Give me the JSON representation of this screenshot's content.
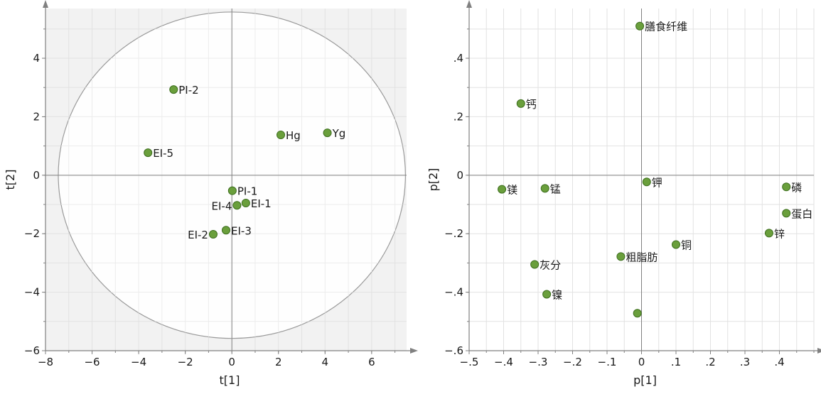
{
  "colors": {
    "point_fill": "#6a9f3c",
    "point_stroke": "#3d6e1e",
    "grid": "#e2e2e2",
    "axis": "#808080",
    "outside_ellipse": "#f2f2f2",
    "ellipse_line": "#9a9a9a"
  },
  "chart_data": [
    {
      "type": "scatter",
      "title": "",
      "xlabel": "t[1]",
      "ylabel": "t[2]",
      "xlim": [
        -8,
        7.5
      ],
      "ylim": [
        -6,
        5.7
      ],
      "xticks": [
        -8,
        -6,
        -4,
        -2,
        0,
        2,
        4,
        6
      ],
      "yticks": [
        -6,
        -4,
        -2,
        0,
        2,
        4
      ],
      "grid": true,
      "confidence_ellipse": {
        "rx": 7.45,
        "ry": 5.58
      },
      "points": [
        {
          "label": "PI-2",
          "x": -2.5,
          "y": 2.93
        },
        {
          "label": "EI-5",
          "x": -3.6,
          "y": 0.77
        },
        {
          "label": "Hg",
          "x": 2.1,
          "y": 1.38
        },
        {
          "label": "Yg",
          "x": 4.1,
          "y": 1.45
        },
        {
          "label": "PI-1",
          "x": 0.02,
          "y": -0.53
        },
        {
          "label": "EI-1",
          "x": 0.6,
          "y": -0.95
        },
        {
          "label": "EI-4",
          "x": 0.22,
          "y": -1.03
        },
        {
          "label": "EI-3",
          "x": -0.25,
          "y": -1.88
        },
        {
          "label": "EI-2",
          "x": -0.8,
          "y": -2.02
        }
      ]
    },
    {
      "type": "scatter",
      "title": "",
      "xlabel": "p[1]",
      "ylabel": "p[2]",
      "xlim": [
        -0.5,
        0.5
      ],
      "ylim": [
        -0.6,
        0.57
      ],
      "xticks": [
        -0.5,
        -0.4,
        -0.3,
        -0.2,
        -0.1,
        0,
        0.1,
        0.2,
        0.3,
        0.4
      ],
      "yticks": [
        -0.6,
        -0.4,
        -0.2,
        0,
        0.2,
        0.4
      ],
      "grid": true,
      "points": [
        {
          "label": "膳食纤维",
          "x": -0.005,
          "y": 0.51
        },
        {
          "label": "钙",
          "x": -0.35,
          "y": 0.245
        },
        {
          "label": "镁",
          "x": -0.405,
          "y": -0.048
        },
        {
          "label": "锰",
          "x": -0.28,
          "y": -0.045
        },
        {
          "label": "钾",
          "x": 0.015,
          "y": -0.023
        },
        {
          "label": "磷",
          "x": 0.42,
          "y": -0.04
        },
        {
          "label": "蛋白",
          "x": 0.42,
          "y": -0.13
        },
        {
          "label": "锌",
          "x": 0.37,
          "y": -0.198
        },
        {
          "label": "铜",
          "x": 0.1,
          "y": -0.237
        },
        {
          "label": "粗脂肪",
          "x": -0.06,
          "y": -0.278
        },
        {
          "label": "灰分",
          "x": -0.31,
          "y": -0.305
        },
        {
          "label": "镍",
          "x": -0.275,
          "y": -0.407
        },
        {
          "label": "",
          "x": -0.012,
          "y": -0.472
        }
      ]
    }
  ]
}
